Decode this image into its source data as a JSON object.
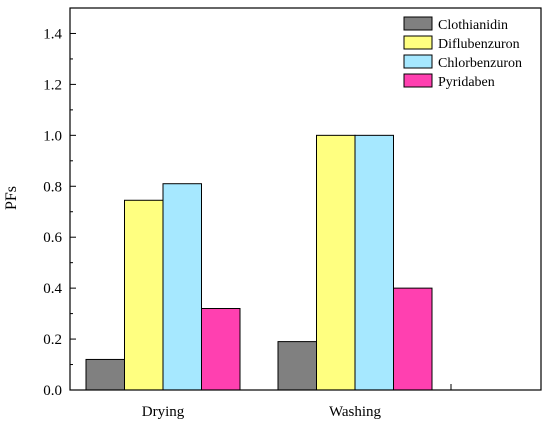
{
  "chart_data": {
    "type": "bar",
    "categories": [
      "Drying",
      "Washing"
    ],
    "series": [
      {
        "name": "Clothianidin",
        "color": "#808080",
        "values": [
          0.12,
          0.19
        ]
      },
      {
        "name": "Diflubenzuron",
        "color": "#ffff80",
        "values": [
          0.745,
          1.0
        ]
      },
      {
        "name": "Chlorbenzuron",
        "color": "#a6e8ff",
        "values": [
          0.81,
          1.0
        ]
      },
      {
        "name": "Pyridaben",
        "color": "#ff40b0",
        "values": [
          0.32,
          0.4
        ]
      }
    ],
    "xlabel": "",
    "ylabel": "PFs",
    "ylim": [
      0,
      1.5
    ],
    "yticks": [
      "0.0",
      "0.2",
      "0.4",
      "0.6",
      "0.8",
      "1.0",
      "1.2",
      "1.4"
    ],
    "grid": false,
    "legend_position": "top-right"
  }
}
